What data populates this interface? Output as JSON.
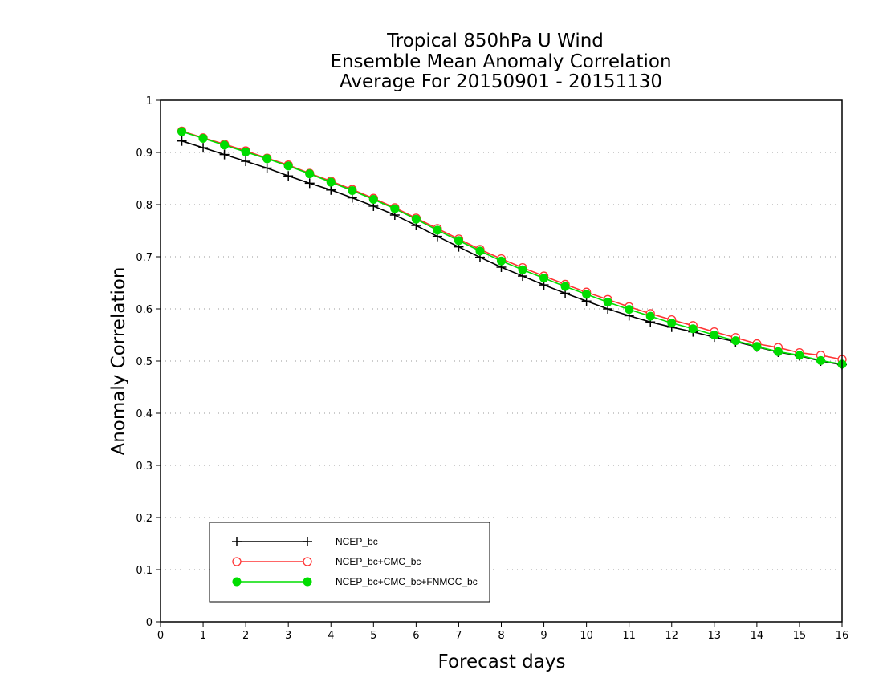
{
  "chart_data": {
    "type": "line",
    "title": [
      "Tropical 850hPa U Wind",
      "Ensemble Mean Anomaly Correlation",
      "Average For 20150901 - 20151130"
    ],
    "xlabel": "Forecast days",
    "ylabel": "Anomaly Correlation",
    "xlim": [
      0,
      16
    ],
    "ylim": [
      0,
      1
    ],
    "xticks": [
      "0",
      "1",
      "2",
      "3",
      "4",
      "5",
      "6",
      "7",
      "8",
      "9",
      "10",
      "11",
      "12",
      "13",
      "14",
      "15",
      "16"
    ],
    "yticks": [
      "0",
      "0.1",
      "0.2",
      "0.3",
      "0.4",
      "0.5",
      "0.6",
      "0.7",
      "0.8",
      "0.9",
      "1"
    ],
    "grid": true,
    "legend_position": "bottom-left",
    "x": [
      0.5,
      1,
      1.5,
      2,
      2.5,
      3,
      3.5,
      4,
      4.5,
      5,
      5.5,
      6,
      6.5,
      7,
      7.5,
      8,
      8.5,
      9,
      9.5,
      10,
      10.5,
      11,
      11.5,
      12,
      12.5,
      13,
      13.5,
      14,
      14.5,
      15,
      15.5,
      16
    ],
    "series": [
      {
        "name": "NCEP_bc",
        "color": "#000000",
        "marker": "plus",
        "values": [
          0.922,
          0.909,
          0.896,
          0.883,
          0.87,
          0.855,
          0.841,
          0.828,
          0.813,
          0.797,
          0.78,
          0.76,
          0.739,
          0.719,
          0.699,
          0.68,
          0.663,
          0.646,
          0.63,
          0.615,
          0.6,
          0.587,
          0.575,
          0.565,
          0.556,
          0.546,
          0.537,
          0.527,
          0.517,
          0.51,
          0.5,
          0.493
        ]
      },
      {
        "name": "NCEP_bc+CMC_bc",
        "color": "#ff3333",
        "marker": "open-circle",
        "values": [
          0.941,
          0.928,
          0.916,
          0.903,
          0.889,
          0.876,
          0.86,
          0.845,
          0.829,
          0.812,
          0.794,
          0.774,
          0.754,
          0.734,
          0.714,
          0.696,
          0.679,
          0.663,
          0.647,
          0.632,
          0.618,
          0.604,
          0.591,
          0.579,
          0.568,
          0.556,
          0.545,
          0.533,
          0.526,
          0.516,
          0.511,
          0.503
        ]
      },
      {
        "name": "NCEP_bc+CMC_bc+FNMOC_bc",
        "color": "#00dd00",
        "marker": "filled-circle",
        "values": [
          0.94,
          0.927,
          0.914,
          0.901,
          0.888,
          0.874,
          0.859,
          0.843,
          0.827,
          0.81,
          0.792,
          0.772,
          0.751,
          0.731,
          0.711,
          0.692,
          0.675,
          0.659,
          0.643,
          0.628,
          0.613,
          0.599,
          0.586,
          0.573,
          0.562,
          0.55,
          0.539,
          0.528,
          0.518,
          0.511,
          0.501,
          0.494
        ]
      }
    ]
  }
}
